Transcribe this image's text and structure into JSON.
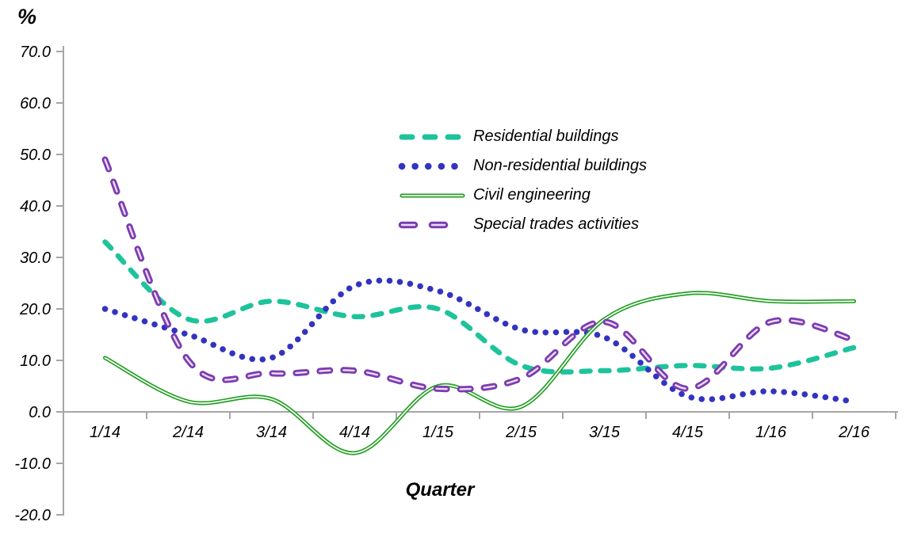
{
  "chart_data": {
    "type": "line",
    "title": "",
    "ylabel": "%",
    "xlabel": "Quarter",
    "categories": [
      "1/14",
      "2/14",
      "3/14",
      "4/14",
      "1/15",
      "2/15",
      "3/15",
      "4/15",
      "1/16",
      "2/16"
    ],
    "y_tick_labels": [
      "70.0",
      "60.0",
      "50.0",
      "40.0",
      "30.0",
      "20.0",
      "10.0",
      "0.0",
      "-10.0",
      "-20.0"
    ],
    "ylim": [
      -20,
      70
    ],
    "grid": false,
    "legend_position": "inside-top-center",
    "axis_color": "#A6A6A6",
    "text_color": "#000000",
    "line_smoothing": "smoothed",
    "series": [
      {
        "name": "Residential buildings",
        "color": "#1EC39B",
        "style": "dashed",
        "values": [
          33,
          18,
          21.5,
          18.5,
          20,
          9,
          8,
          9,
          8.5,
          12.5
        ]
      },
      {
        "name": "Non-residential buildings",
        "color": "#3333C1",
        "style": "dotted",
        "values": [
          20,
          15,
          10.5,
          24.5,
          23.5,
          16,
          14.5,
          3,
          4,
          2
        ]
      },
      {
        "name": "Civil engineering",
        "color": "#1E9C1E",
        "inner_color": "#F7FCF7",
        "style": "solid-double",
        "values": [
          10.5,
          2,
          2.5,
          -8,
          5,
          1,
          18,
          23,
          21.5,
          21.5
        ]
      },
      {
        "name": "Special trades activities",
        "color": "#7C3CAE",
        "inner_color": "#EBDCF7",
        "style": "dashed-double",
        "values": [
          49,
          10,
          7.5,
          8,
          4.5,
          6.5,
          17.5,
          4.5,
          17.5,
          14
        ]
      }
    ]
  }
}
